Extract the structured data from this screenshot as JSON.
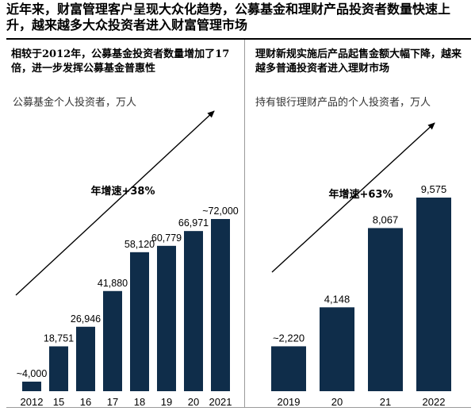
{
  "headline": "近年来，财富管理客户呈现大众化趋势，公募基金和理财产品投资者数量快速上升，越来越多大众投资者进入财富管理市场",
  "colors": {
    "bar": "#0f2d4a",
    "arrow": "#000000"
  },
  "chart_data": [
    {
      "type": "bar",
      "title": "相较于2012年，公募基金投资者数量增加了17倍，进一步发挥公募基金普惠性",
      "ylabel": "公募基金个人投资者，万人",
      "categories": [
        "2012",
        "15",
        "16",
        "17",
        "18",
        "19",
        "20",
        "2021"
      ],
      "values": [
        4000,
        18751,
        26946,
        41880,
        58120,
        60779,
        66971,
        72000
      ],
      "value_labels": [
        "~4,000",
        "18,751",
        "26,946",
        "41,880",
        "58,120",
        "60,779",
        "66,971",
        "~72,000"
      ],
      "annotation": "年增速+38%",
      "ylim": [
        0,
        72000
      ]
    },
    {
      "type": "bar",
      "title": "理财新规实施后产品起售金额大幅下降，越来越多普通投资者进入理财市场",
      "ylabel": "持有银行理财产品的个人投资者，万人",
      "categories": [
        "2019",
        "20",
        "21",
        "2022"
      ],
      "values": [
        2220,
        4148,
        8067,
        9575
      ],
      "value_labels": [
        "~2,220",
        "4,148",
        "8,067",
        "9,575"
      ],
      "annotation": "年增速+63%",
      "ylim": [
        0,
        9575
      ]
    }
  ]
}
